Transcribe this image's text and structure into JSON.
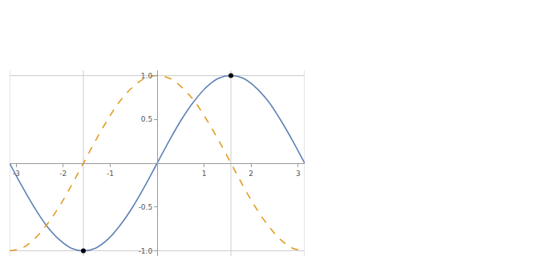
{
  "chart_data": {
    "type": "line",
    "x": [
      -3.14,
      -2.88,
      -2.62,
      -2.36,
      -2.09,
      -1.83,
      -1.57,
      -1.31,
      -1.05,
      -0.79,
      -0.52,
      -0.26,
      0,
      0.26,
      0.52,
      0.79,
      1.05,
      1.31,
      1.57,
      1.83,
      2.09,
      2.36,
      2.62,
      2.88,
      3.14
    ],
    "series": [
      {
        "color": "#5e81b5",
        "line_style": "solid",
        "values": [
          0,
          -0.26,
          -0.5,
          -0.71,
          -0.87,
          -0.97,
          -1,
          -0.97,
          -0.87,
          -0.71,
          -0.5,
          -0.26,
          0,
          0.26,
          0.5,
          0.71,
          0.87,
          0.97,
          1,
          0.97,
          0.87,
          0.71,
          0.5,
          0.26,
          0
        ]
      },
      {
        "color": "#e19c24",
        "line_style": "dashed",
        "values": [
          -1,
          -0.97,
          -0.87,
          -0.71,
          -0.5,
          -0.26,
          0,
          0.26,
          0.5,
          0.71,
          0.87,
          0.97,
          1,
          0.97,
          0.87,
          0.71,
          0.5,
          0.26,
          0,
          -0.26,
          -0.5,
          -0.71,
          -0.87,
          -0.97,
          -1
        ]
      }
    ],
    "xlim": [
      -3.14,
      3.14
    ],
    "ylim": [
      -1.06,
      1.06
    ],
    "xticks": [
      -3,
      -2,
      -1,
      1,
      2,
      3
    ],
    "yticks": [
      {
        "value": -1,
        "label": "-1.0"
      },
      -0.5,
      0.5,
      {
        "value": 1,
        "label": "1.0"
      }
    ],
    "gridlines": {
      "x": [
        -3.14,
        -1.57,
        1.57,
        3.14
      ],
      "y": [
        -1,
        1
      ]
    },
    "points": {
      "x": [
        -1.57,
        1.57
      ],
      "y": [
        -1,
        1
      ],
      "color": "#000000"
    },
    "legend": false
  }
}
